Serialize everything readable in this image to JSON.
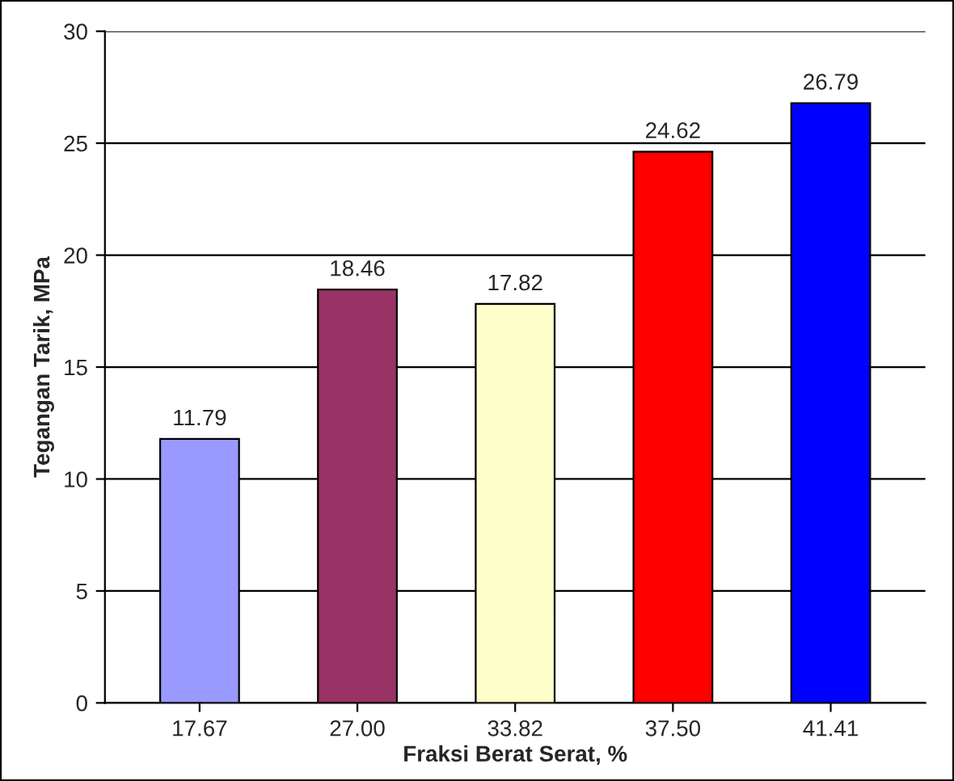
{
  "chart_data": {
    "type": "bar",
    "xlabel": "Fraksi Berat Serat, %",
    "ylabel": "Tegangan Tarik, MPa",
    "categories": [
      "17.67",
      "27.00",
      "33.82",
      "37.50",
      "41.41"
    ],
    "values": [
      11.79,
      18.46,
      17.82,
      24.62,
      26.79
    ],
    "colors": [
      "#9999ff",
      "#993366",
      "#ffffcc",
      "#ff0000",
      "#0000ff"
    ],
    "ylim": [
      0,
      30
    ],
    "yticks": [
      0,
      5,
      10,
      15,
      20,
      25,
      30
    ],
    "grid": "y",
    "data_labels": true
  }
}
